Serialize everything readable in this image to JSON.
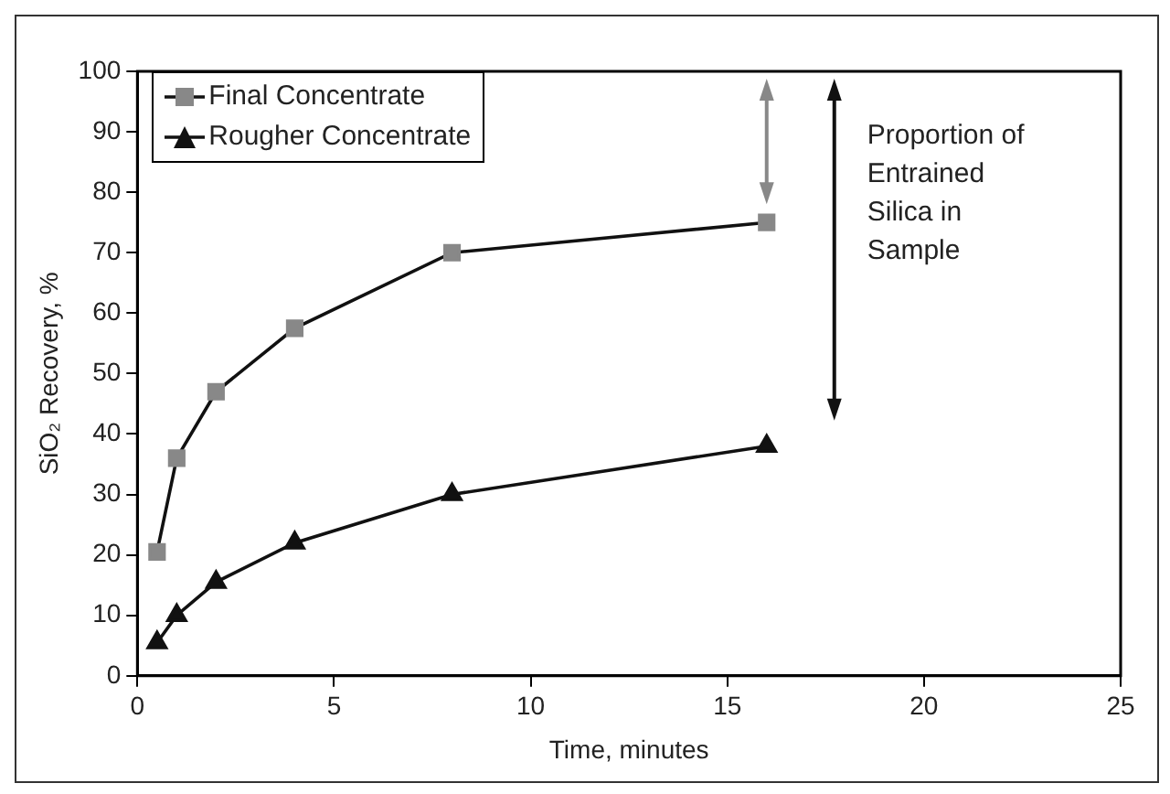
{
  "chart_data": {
    "type": "line",
    "xlabel": "Time, minutes",
    "ylabel": "SiO₂ Recovery, %",
    "x": [
      0.5,
      1,
      2,
      4,
      8,
      16
    ],
    "series": [
      {
        "name": "Final Concentrate",
        "color": "#888888",
        "marker": "square",
        "values": [
          20.5,
          36,
          47,
          57.5,
          70,
          75
        ]
      },
      {
        "name": "Rougher Concentrate",
        "color": "#111111",
        "marker": "triangle",
        "values": [
          5.5,
          10,
          15.5,
          22,
          30,
          38
        ]
      }
    ],
    "xlim": [
      0,
      25
    ],
    "xticks": [
      0,
      5,
      10,
      15,
      20,
      25
    ],
    "ylim": [
      0,
      100
    ],
    "yticks": [
      0,
      10,
      20,
      30,
      40,
      50,
      60,
      70,
      80,
      90,
      100
    ],
    "grid": false,
    "legend": "top left",
    "annotations": [
      "Proportion of\nEntrained\nSilica in\nSample"
    ]
  }
}
